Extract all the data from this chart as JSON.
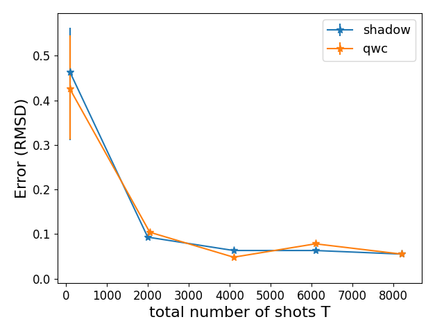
{
  "shadow": {
    "x": [
      100,
      2000,
      4100,
      6100,
      8200
    ],
    "y": [
      0.463,
      0.093,
      0.063,
      0.063,
      0.055
    ],
    "yerr_upper": [
      0.1,
      0.0,
      0.0,
      0.0,
      0.0
    ],
    "yerr_lower": [
      0.153,
      0.0,
      0.0,
      0.0,
      0.0
    ],
    "color": "#1f77b4",
    "label": "shadow",
    "marker": "*"
  },
  "qwc": {
    "x": [
      100,
      2050,
      4100,
      6100,
      8200
    ],
    "y": [
      0.425,
      0.104,
      0.048,
      0.078,
      0.055
    ],
    "yerr_upper": [
      0.12,
      0.0,
      0.0,
      0.0,
      0.0
    ],
    "yerr_lower": [
      0.113,
      0.0,
      0.0,
      0.0,
      0.0
    ],
    "color": "#ff7f0e",
    "label": "qwc",
    "marker": "*"
  },
  "xlabel": "total number of shots T",
  "ylabel": "Error (RMSD)",
  "xlabel_fontsize": 16,
  "ylabel_fontsize": 16,
  "legend_fontsize": 13,
  "tick_fontsize": 12,
  "xlim": [
    -200,
    8700
  ],
  "ylim": [
    -0.01,
    0.595
  ],
  "figsize": [
    6.4,
    4.8
  ],
  "dpi": 100
}
